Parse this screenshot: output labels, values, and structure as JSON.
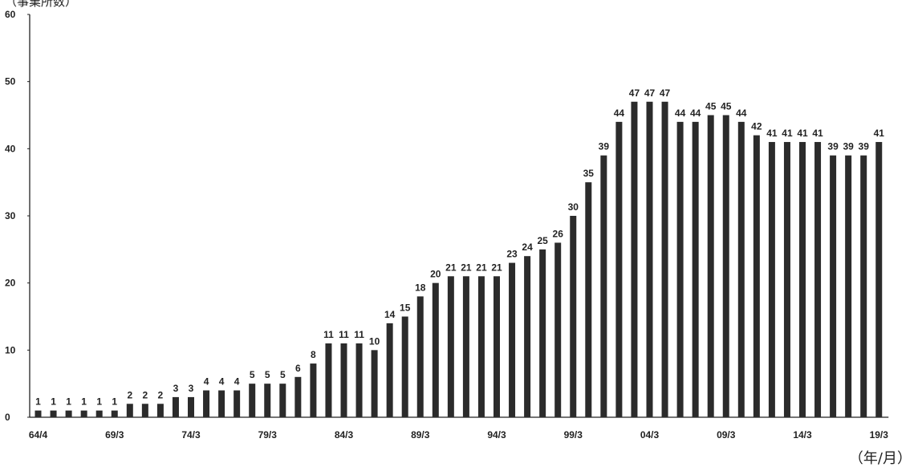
{
  "chart_data": {
    "type": "bar",
    "title": "",
    "ylabel": "（事業所数）",
    "xlabel": "（年/月）",
    "ylim": [
      0,
      60
    ],
    "yticks": [
      0,
      10,
      20,
      30,
      40,
      50,
      60
    ],
    "xtick_labels": [
      "64/4",
      "69/3",
      "74/3",
      "79/3",
      "84/3",
      "89/3",
      "94/3",
      "99/3",
      "04/3",
      "09/3",
      "14/3",
      "19/3"
    ],
    "values": [
      1,
      1,
      1,
      1,
      1,
      1,
      2,
      2,
      2,
      3,
      3,
      4,
      4,
      4,
      5,
      5,
      5,
      6,
      8,
      11,
      11,
      11,
      10,
      14,
      15,
      18,
      20,
      21,
      21,
      21,
      21,
      23,
      24,
      25,
      26,
      30,
      35,
      39,
      44,
      47,
      47,
      47,
      44,
      44,
      45,
      45,
      44,
      42,
      41,
      41,
      41,
      41,
      39,
      39,
      39,
      41
    ],
    "bar_color": "#2b2b2b",
    "grid": false
  }
}
